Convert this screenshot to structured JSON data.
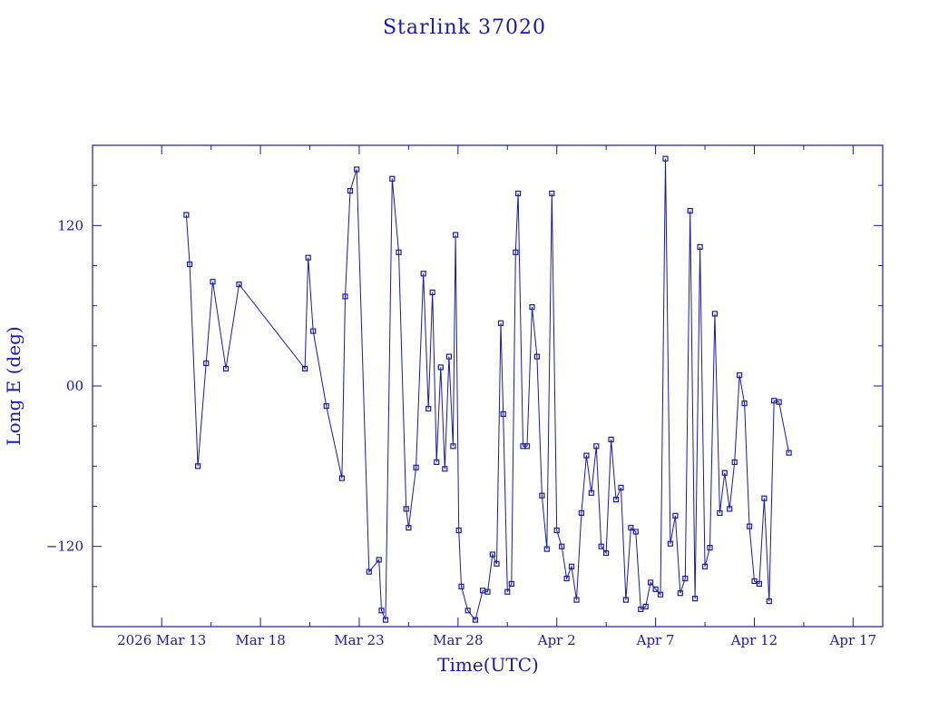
{
  "chart_data": {
    "type": "line",
    "title": "Starlink 37020",
    "xlabel": "Time(UTC)",
    "ylabel": "Long E (deg)",
    "color": "#1a1aa6",
    "xlim": [
      "2026-03-09T12:00",
      "2026-04-18T12:00"
    ],
    "ylim": [
      -180,
      180
    ],
    "x_tick_labels": [
      {
        "label": "2026 Mar 13",
        "date": "2026-03-13"
      },
      {
        "label": "Mar 18",
        "date": "2026-03-18"
      },
      {
        "label": "Mar 23",
        "date": "2026-03-23"
      },
      {
        "label": "Mar 28",
        "date": "2026-03-28"
      },
      {
        "label": "Apr  2",
        "date": "2026-04-02"
      },
      {
        "label": "Apr  7",
        "date": "2026-04-07"
      },
      {
        "label": "Apr 12",
        "date": "2026-04-12"
      },
      {
        "label": "Apr 17",
        "date": "2026-04-17"
      }
    ],
    "x_minor_ticks": [
      "2026-03-15T12:00",
      "2026-03-20T12:00",
      "2026-03-25T12:00",
      "2026-03-30T12:00",
      "2026-04-04T12:00",
      "2026-04-09T12:00",
      "2026-04-14T12:00"
    ],
    "y_ticks": [
      -120,
      0,
      120
    ],
    "y_tick_labels": [
      "−120",
      "00",
      "120"
    ],
    "y_minor_ticks": [
      -150,
      -90,
      -60,
      -30,
      30,
      60,
      90,
      150
    ],
    "series": [
      {
        "x": [
          "2026-03-14T06:00",
          "2026-03-14T10:00",
          "2026-03-14T20:00",
          "2026-03-15T06:00",
          "2026-03-15T14:00",
          "2026-03-16T06:00",
          "2026-03-16T22:00",
          "2026-03-20T06:00",
          "2026-03-20T10:00",
          "2026-03-20T16:00",
          "2026-03-21T08:00",
          "2026-03-22T03:00",
          "2026-03-22T07:00",
          "2026-03-22T13:00",
          "2026-03-22T21:00",
          "2026-03-23T12:00",
          "2026-03-24T00:00",
          "2026-03-24T03:00",
          "2026-03-24T08:00",
          "2026-03-24T16:00",
          "2026-03-25T00:00",
          "2026-03-25T09:00",
          "2026-03-25T12:00",
          "2026-03-25T21:00",
          "2026-03-26T06:00",
          "2026-03-26T12:00",
          "2026-03-26T17:00",
          "2026-03-26T22:00",
          "2026-03-27T03:00",
          "2026-03-27T08:00",
          "2026-03-27T13:00",
          "2026-03-27T18:00",
          "2026-03-27T21:00",
          "2026-03-28T01:00",
          "2026-03-28T04:00",
          "2026-03-28T12:00",
          "2026-03-28T21:00",
          "2026-03-29T06:00",
          "2026-03-29T12:00",
          "2026-03-29T18:00",
          "2026-03-29T23:00",
          "2026-03-30T04:00",
          "2026-03-30T07:00",
          "2026-03-30T12:00",
          "2026-03-30T17:00",
          "2026-03-30T22:00",
          "2026-03-31T01:00",
          "2026-03-31T07:00",
          "2026-03-31T12:00",
          "2026-03-31T18:00",
          "2026-04-01T00:00",
          "2026-04-01T06:00",
          "2026-04-01T12:00",
          "2026-04-01T18:00",
          "2026-04-02T00:00",
          "2026-04-02T06:00",
          "2026-04-02T12:00",
          "2026-04-02T18:00",
          "2026-04-03T00:00",
          "2026-04-03T06:00",
          "2026-04-03T12:00",
          "2026-04-03T18:00",
          "2026-04-04T00:00",
          "2026-04-04T06:00",
          "2026-04-04T12:00",
          "2026-04-04T18:00",
          "2026-04-05T00:00",
          "2026-04-05T06:00",
          "2026-04-05T12:00",
          "2026-04-05T18:00",
          "2026-04-06T00:00",
          "2026-04-06T06:00",
          "2026-04-06T12:00",
          "2026-04-06T18:00",
          "2026-04-07T00:00",
          "2026-04-07T06:00",
          "2026-04-07T12:00",
          "2026-04-07T18:00",
          "2026-04-08T00:00",
          "2026-04-08T06:00",
          "2026-04-08T12:00",
          "2026-04-08T18:00",
          "2026-04-09T00:00",
          "2026-04-09T06:00",
          "2026-04-09T12:00",
          "2026-04-09T18:00",
          "2026-04-10T00:00",
          "2026-04-10T06:00",
          "2026-04-10T12:00",
          "2026-04-10T18:00",
          "2026-04-11T00:00",
          "2026-04-11T06:00",
          "2026-04-11T12:00",
          "2026-04-11T18:00",
          "2026-04-12T00:00",
          "2026-04-12T06:00",
          "2026-04-12T12:00",
          "2026-04-12T18:00",
          "2026-04-13T00:00",
          "2026-04-13T06:00",
          "2026-04-13T18:00"
        ],
        "y": [
          128,
          91,
          -60,
          17,
          78,
          13,
          76,
          13,
          96,
          41,
          -15,
          -69,
          67,
          146,
          162,
          -139,
          -130,
          -168,
          -175,
          155,
          100,
          -92,
          -106,
          -61,
          84,
          -17,
          70,
          -57,
          14,
          -62,
          22,
          -45,
          113,
          -108,
          -150,
          -168,
          -175,
          -153,
          -154,
          -126,
          -133,
          47,
          -21,
          -154,
          -148,
          100,
          144,
          -45,
          -45,
          59,
          22,
          -82,
          -122,
          144,
          -108,
          -120,
          -144,
          -135,
          -160,
          -95,
          -52,
          -80,
          -45,
          -120,
          -125,
          -40,
          -85,
          -76,
          -160,
          -106,
          -109,
          -167,
          -165,
          -147,
          -152,
          -156,
          170,
          -118,
          -97,
          -155,
          -144,
          131,
          -159,
          104,
          -135,
          -121,
          54,
          -95,
          -65,
          -92,
          -57,
          8,
          -13,
          -105,
          -146,
          -148,
          -84,
          -161,
          -11,
          -12,
          -50
        ],
        "markers": true
      }
    ]
  }
}
